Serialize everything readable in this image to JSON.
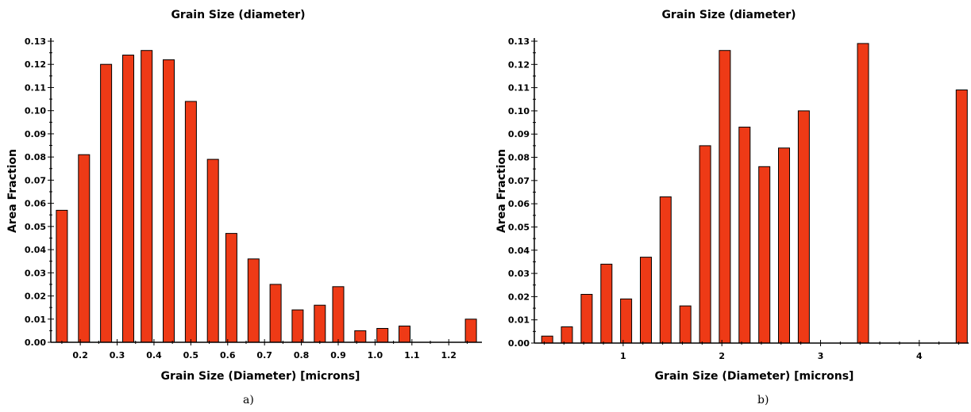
{
  "chart_data": [
    {
      "type": "bar",
      "title": "Grain Size (diameter)",
      "xlabel": "Grain Size (Diameter) [microns]",
      "ylabel": "Area Fraction",
      "caption": "a)",
      "color": "#ee3a16",
      "x": [
        0.15,
        0.21,
        0.27,
        0.33,
        0.38,
        0.44,
        0.5,
        0.56,
        0.61,
        0.67,
        0.73,
        0.79,
        0.85,
        0.9,
        0.96,
        1.02,
        1.08,
        1.14,
        1.2,
        1.26
      ],
      "values": [
        0.057,
        0.081,
        0.12,
        0.124,
        0.126,
        0.122,
        0.104,
        0.079,
        0.047,
        0.036,
        0.025,
        0.014,
        0.016,
        0.024,
        0.005,
        0.006,
        0.007,
        0,
        0,
        0.01
      ],
      "xlim": [
        0.12,
        1.29
      ],
      "ylim": [
        0,
        0.13
      ],
      "xticks": [
        "0.2",
        "0.3",
        "0.4",
        "0.5",
        "0.6",
        "0.7",
        "0.8",
        "0.9",
        "1.0",
        "1.1",
        "1.2"
      ],
      "xtick_values": [
        0.2,
        0.3,
        0.4,
        0.5,
        0.6,
        0.7,
        0.8,
        0.9,
        1.0,
        1.1,
        1.2
      ],
      "yticks": [
        "0.00",
        "0.01",
        "0.02",
        "0.03",
        "0.04",
        "0.05",
        "0.06",
        "0.07",
        "0.08",
        "0.09",
        "0.10",
        "0.11",
        "0.12",
        "0.13"
      ],
      "ytick_values": [
        0,
        0.01,
        0.02,
        0.03,
        0.04,
        0.05,
        0.06,
        0.07,
        0.08,
        0.09,
        0.1,
        0.11,
        0.12,
        0.13
      ],
      "grid": false
    },
    {
      "type": "bar",
      "title": "Grain Size (diameter)",
      "xlabel": "Grain Size (Diameter) [microns]",
      "ylabel": "Area Fraction",
      "caption": "b)",
      "color": "#ee3a16",
      "x": [
        0.23,
        0.43,
        0.63,
        0.83,
        1.03,
        1.23,
        1.43,
        1.63,
        1.83,
        2.03,
        2.23,
        2.43,
        2.63,
        2.83,
        3.03,
        3.23,
        3.43,
        3.63,
        3.83,
        4.03,
        4.23,
        4.43
      ],
      "values": [
        0.003,
        0.007,
        0.021,
        0.034,
        0.019,
        0.037,
        0.063,
        0.016,
        0.085,
        0.126,
        0.093,
        0.076,
        0.084,
        0.1,
        0,
        0,
        0.129,
        0,
        0,
        0,
        0,
        0.109
      ],
      "xlim": [
        0.1,
        4.5
      ],
      "ylim": [
        0,
        0.13
      ],
      "xticks": [
        "1",
        "2",
        "3",
        "4"
      ],
      "xtick_values": [
        1,
        2,
        3,
        4
      ],
      "yticks": [
        "0.00",
        "0.01",
        "0.02",
        "0.03",
        "0.04",
        "0.05",
        "0.06",
        "0.07",
        "0.08",
        "0.09",
        "0.10",
        "0.11",
        "0.12",
        "0.13"
      ],
      "ytick_values": [
        0,
        0.01,
        0.02,
        0.03,
        0.04,
        0.05,
        0.06,
        0.07,
        0.08,
        0.09,
        0.1,
        0.11,
        0.12,
        0.13
      ],
      "grid": false
    }
  ]
}
